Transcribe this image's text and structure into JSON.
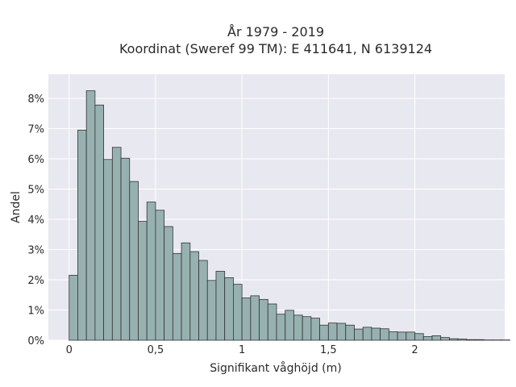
{
  "chart_data": {
    "type": "bar",
    "title_lines": [
      "År 1979 - 2019",
      "Koordinat (Sweref 99 TM): E 411641, N 6139124"
    ],
    "xlabel": "Signifikant våghöjd (m)",
    "ylabel": "Andel",
    "xlim": [
      -0.12,
      2.52
    ],
    "ylim": [
      0,
      8.8
    ],
    "x_ticks": [
      {
        "value": 0,
        "label": "0"
      },
      {
        "value": 0.5,
        "label": "0,5"
      },
      {
        "value": 1,
        "label": "1"
      },
      {
        "value": 1.5,
        "label": "1,5"
      },
      {
        "value": 2,
        "label": "2"
      }
    ],
    "y_ticks": [
      {
        "value": 0,
        "label": "0%"
      },
      {
        "value": 1,
        "label": "1%"
      },
      {
        "value": 2,
        "label": "2%"
      },
      {
        "value": 3,
        "label": "3%"
      },
      {
        "value": 4,
        "label": "4%"
      },
      {
        "value": 5,
        "label": "5%"
      },
      {
        "value": 6,
        "label": "6%"
      },
      {
        "value": 7,
        "label": "7%"
      },
      {
        "value": 8,
        "label": "8%"
      }
    ],
    "grid": true,
    "bin_start": 0,
    "bin_width": 0.05,
    "values": [
      2.15,
      6.95,
      8.25,
      7.78,
      5.98,
      6.38,
      6.02,
      5.25,
      3.93,
      4.57,
      4.3,
      3.76,
      2.87,
      3.22,
      2.93,
      2.64,
      1.98,
      2.28,
      2.07,
      1.85,
      1.4,
      1.47,
      1.35,
      1.2,
      0.86,
      0.99,
      0.83,
      0.78,
      0.73,
      0.5,
      0.57,
      0.56,
      0.5,
      0.37,
      0.43,
      0.4,
      0.38,
      0.28,
      0.27,
      0.27,
      0.22,
      0.12,
      0.15,
      0.09,
      0.05,
      0.04,
      0.02,
      0.02,
      0.01,
      0.01,
      0.01
    ],
    "colors": {
      "bar_fill": "#97b1b0",
      "bar_stroke": "#333333",
      "plot_bg": "#e8e8f0",
      "grid": "#ffffff"
    }
  }
}
